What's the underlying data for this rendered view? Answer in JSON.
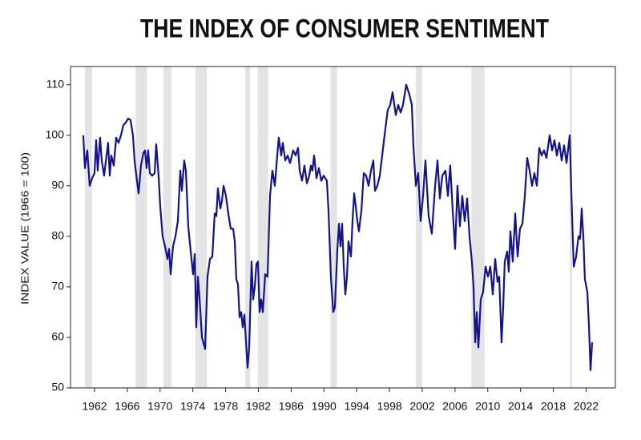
{
  "chart_data": {
    "type": "line",
    "title": "THE INDEX OF CONSUMER SENTIMENT",
    "y_label": "INDEX VALUE (1966 = 100)",
    "color": "#14148a",
    "band_color": "#e4e4e4",
    "xlim": [
      1959.07,
      2025.57
    ],
    "ylim": [
      50,
      113.6
    ],
    "xticks": [
      1962,
      1966,
      1970,
      1974,
      1978,
      1982,
      1986,
      1990,
      1994,
      1998,
      2002,
      2006,
      2010,
      2014,
      2018,
      2022
    ],
    "yticks": [
      50,
      60,
      70,
      80,
      90,
      100,
      110
    ],
    "recession_bands": [
      [
        1960.83,
        1961.71
      ],
      [
        1967.0,
        1968.4
      ],
      [
        1970.4,
        1971.4
      ],
      [
        1974.3,
        1975.7
      ],
      [
        1980.4,
        1981.0
      ],
      [
        1981.9,
        1983.2
      ],
      [
        1990.8,
        1991.6
      ],
      [
        2001.2,
        2002.0
      ],
      [
        2008.0,
        2009.6
      ],
      [
        2020.0,
        2020.3
      ]
    ],
    "x": [
      1960.63,
      1960.83,
      1961.12,
      1961.41,
      1961.71,
      1962.0,
      1962.2,
      1962.39,
      1962.68,
      1962.88,
      1963.17,
      1963.47,
      1963.66,
      1963.86,
      1964.05,
      1964.35,
      1964.64,
      1964.93,
      1965.23,
      1965.52,
      1965.81,
      1966.11,
      1966.4,
      1966.69,
      1966.89,
      1967.18,
      1967.38,
      1967.67,
      1967.97,
      1968.16,
      1968.36,
      1968.55,
      1968.75,
      1969.04,
      1969.34,
      1969.53,
      1969.82,
      1970.02,
      1970.31,
      1970.61,
      1970.9,
      1971.1,
      1971.29,
      1971.58,
      1971.88,
      1972.17,
      1972.47,
      1972.66,
      1972.95,
      1973.15,
      1973.44,
      1973.74,
      1974.03,
      1974.23,
      1974.42,
      1974.62,
      1974.81,
      1975.11,
      1975.5,
      1975.79,
      1976.09,
      1976.38,
      1976.67,
      1976.87,
      1977.06,
      1977.36,
      1977.55,
      1977.75,
      1978.04,
      1978.33,
      1978.63,
      1978.92,
      1979.12,
      1979.31,
      1979.51,
      1979.7,
      1979.9,
      1980.09,
      1980.29,
      1980.68,
      1980.88,
      1981.17,
      1981.36,
      1981.56,
      1981.76,
      1981.95,
      1982.15,
      1982.34,
      1982.54,
      1982.83,
      1983.12,
      1983.42,
      1983.71,
      1984.01,
      1984.3,
      1984.49,
      1984.79,
      1984.98,
      1985.28,
      1985.57,
      1985.86,
      1986.25,
      1986.55,
      1986.84,
      1987.04,
      1987.33,
      1987.62,
      1987.92,
      1988.21,
      1988.41,
      1988.6,
      1988.8,
      1989.09,
      1989.38,
      1989.68,
      1989.97,
      1990.36,
      1990.56,
      1990.85,
      1991.14,
      1991.34,
      1991.63,
      1991.83,
      1992.02,
      1992.22,
      1992.42,
      1992.61,
      1992.81,
      1993.0,
      1993.3,
      1993.49,
      1993.69,
      1993.88,
      1994.08,
      1994.27,
      1994.57,
      1994.86,
      1995.15,
      1995.45,
      1995.74,
      1996.03,
      1996.23,
      1996.52,
      1996.82,
      1997.11,
      1997.4,
      1997.79,
      1998.09,
      1998.38,
      1998.77,
      1999.07,
      1999.36,
      1999.65,
      2000.04,
      2000.44,
      2000.73,
      2000.92,
      2001.22,
      2001.51,
      2001.8,
      2002.1,
      2002.39,
      2002.78,
      2003.17,
      2003.57,
      2003.86,
      2004.15,
      2004.45,
      2004.84,
      2005.13,
      2005.42,
      2005.72,
      2006.01,
      2006.3,
      2006.6,
      2006.89,
      2007.18,
      2007.48,
      2007.77,
      2008.06,
      2008.26,
      2008.46,
      2008.65,
      2008.85,
      2009.14,
      2009.43,
      2009.73,
      2010.02,
      2010.31,
      2010.61,
      2010.9,
      2011.19,
      2011.39,
      2011.68,
      2011.88,
      2012.07,
      2012.37,
      2012.56,
      2012.76,
      2013.05,
      2013.35,
      2013.64,
      2013.93,
      2014.23,
      2014.52,
      2014.81,
      2015.11,
      2015.4,
      2015.69,
      2015.99,
      2016.28,
      2016.57,
      2016.87,
      2017.16,
      2017.55,
      2017.85,
      2018.14,
      2018.43,
      2018.73,
      2019.02,
      2019.31,
      2019.61,
      2020.0,
      2020.19,
      2020.49,
      2020.78,
      2021.07,
      2021.27,
      2021.46,
      2021.66,
      2021.85,
      2022.15,
      2022.34,
      2022.54,
      2022.73
    ],
    "values": [
      100,
      93.5,
      97,
      90,
      91.5,
      92.5,
      99,
      93,
      99.5,
      95,
      92,
      96,
      98.5,
      92,
      96,
      94,
      99.5,
      98.5,
      100,
      102,
      102.5,
      103.3,
      103,
      100,
      95,
      91,
      88.5,
      94,
      96.5,
      97,
      93.5,
      97,
      92.5,
      92,
      92.5,
      98.2,
      92,
      86,
      80,
      78,
      75.5,
      77.5,
      72.5,
      78,
      80,
      83,
      93,
      89,
      95,
      93,
      82,
      77,
      72.5,
      76.5,
      62,
      72,
      68,
      60,
      57.7,
      72,
      75.5,
      76,
      84.5,
      84,
      89.5,
      85.5,
      87,
      90,
      88,
      84.5,
      81.5,
      81.5,
      79,
      71.5,
      70.5,
      64,
      65,
      62,
      64.5,
      54,
      58,
      75,
      67.5,
      70,
      74.5,
      75,
      65,
      67.5,
      65,
      72.5,
      72,
      88,
      93,
      90,
      96,
      99.5,
      96,
      98.5,
      95,
      96,
      94.5,
      97,
      96,
      97.5,
      93,
      91,
      94,
      90.5,
      92,
      94,
      93,
      96,
      91.5,
      93.5,
      91,
      92,
      91,
      85,
      72,
      65,
      66,
      77,
      82.5,
      78,
      82.5,
      74,
      68.5,
      72,
      79,
      76,
      83,
      88.5,
      86,
      83,
      81,
      85,
      92.5,
      92,
      90,
      93,
      95,
      89,
      90,
      92,
      96,
      100,
      105,
      106,
      108.5,
      104,
      106,
      104.5,
      106,
      110,
      108,
      106,
      98,
      90,
      92.5,
      83,
      88,
      95,
      84,
      80.5,
      90,
      95,
      87.5,
      92,
      93,
      88,
      94,
      85,
      77.5,
      90,
      82,
      88,
      83,
      87.5,
      80,
      75,
      70,
      59,
      65,
      58,
      67.5,
      69,
      74,
      72,
      74,
      68.5,
      75.5,
      71,
      72,
      59,
      66,
      75,
      77,
      73,
      81,
      75,
      84.5,
      76,
      81.5,
      82.5,
      88,
      95.5,
      93,
      90,
      92.5,
      90,
      97.5,
      96,
      97,
      95.5,
      100,
      97,
      99,
      96,
      98.5,
      95,
      98,
      94.5,
      100,
      89,
      74,
      76,
      80,
      79.5,
      85.5,
      80,
      71.5,
      69,
      62.5,
      53.5,
      59
    ]
  }
}
